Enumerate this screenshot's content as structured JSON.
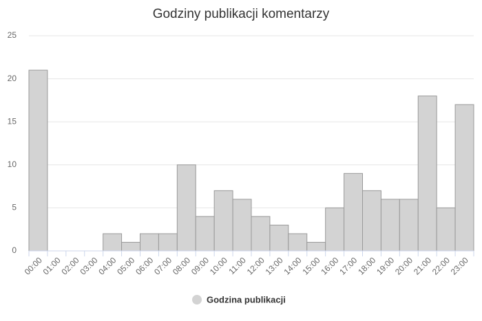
{
  "chart_data": {
    "type": "bar",
    "title": "Godziny publikacji komentarzy",
    "categories": [
      "00:00",
      "01:00",
      "02:00",
      "03:00",
      "04:00",
      "05:00",
      "06:00",
      "07:00",
      "08:00",
      "09:00",
      "10:00",
      "11:00",
      "12:00",
      "13:00",
      "14:00",
      "15:00",
      "16:00",
      "17:00",
      "18:00",
      "19:00",
      "20:00",
      "21:00",
      "22:00",
      "23:00"
    ],
    "series": [
      {
        "name": "Godzina publikacji",
        "color": "#d3d3d3",
        "values": [
          21,
          0,
          0,
          0,
          2,
          1,
          2,
          2,
          10,
          4,
          7,
          6,
          4,
          3,
          2,
          1,
          5,
          9,
          7,
          6,
          6,
          18,
          5,
          17
        ]
      }
    ],
    "ylim": [
      0,
      25
    ],
    "yticks": [
      0,
      5,
      10,
      15,
      20,
      25
    ],
    "grid": true,
    "legend": "bottom"
  }
}
